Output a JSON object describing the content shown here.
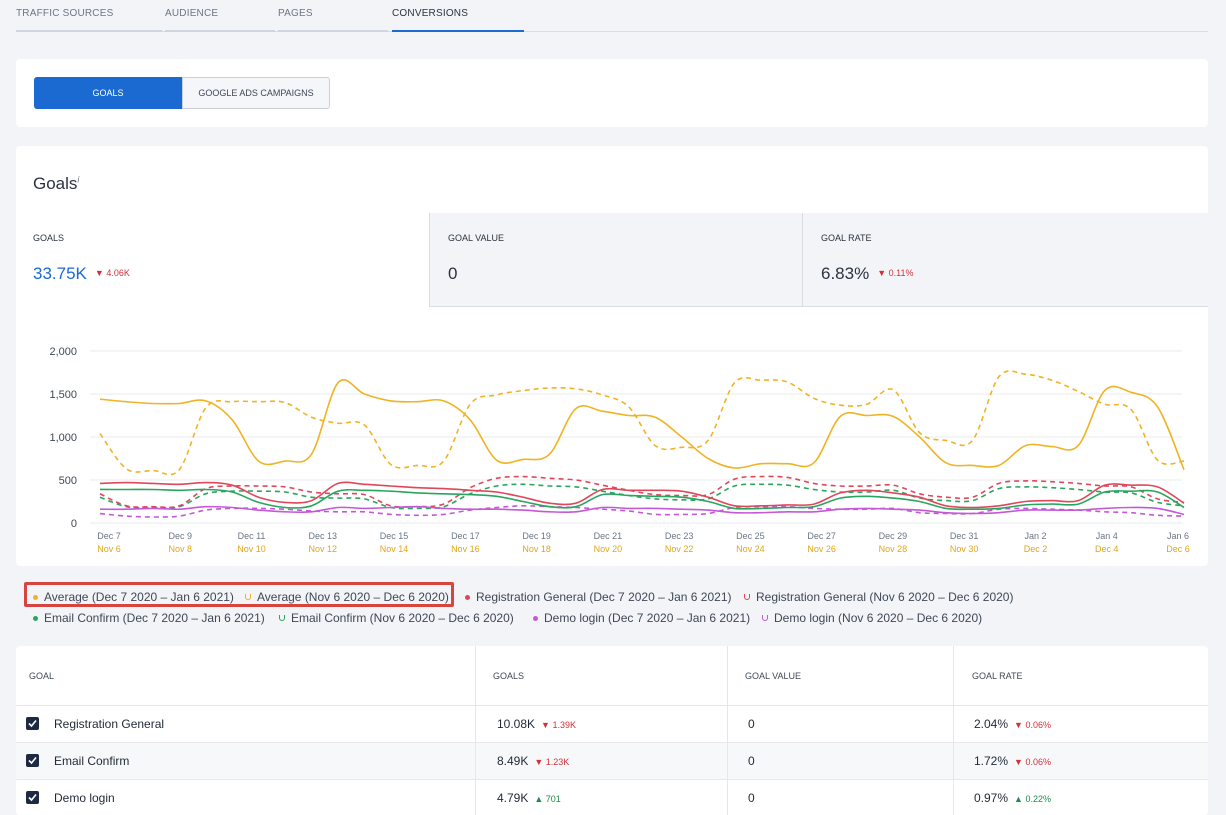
{
  "tabs": [
    {
      "label": "TRAFFIC SOURCES"
    },
    {
      "label": "AUDIENCE"
    },
    {
      "label": "PAGES"
    },
    {
      "label": "CONVERSIONS"
    }
  ],
  "active_tab": "CONVERSIONS",
  "segments": {
    "goals": "GOALS",
    "ads": "GOOGLE ADS CAMPAIGNS"
  },
  "goals_section": {
    "title": "Goals",
    "info": "i",
    "kpis": [
      {
        "label": "GOALS",
        "value": "33.75K",
        "delta": "4.06K"
      },
      {
        "label": "GOAL VALUE",
        "value": "0",
        "delta": ""
      },
      {
        "label": "GOAL RATE",
        "value": "6.83%",
        "delta": "0.11%"
      }
    ]
  },
  "chart_data": {
    "type": "line",
    "y_ticks": [
      "2,000",
      "1,500",
      "1,000",
      "500",
      "0"
    ],
    "ylim": [
      0,
      2000
    ],
    "x_labels_primary": [
      "Dec 7",
      "Dec 9",
      "Dec 11",
      "Dec 13",
      "Dec 15",
      "Dec 17",
      "Dec 19",
      "Dec 21",
      "Dec 23",
      "Dec 25",
      "Dec 27",
      "Dec 29",
      "Dec 31",
      "Jan 2",
      "Jan 4",
      "Jan 6"
    ],
    "x_labels_compare": [
      "Nov 6",
      "Nov 8",
      "Nov 10",
      "Nov 12",
      "Nov 14",
      "Nov 16",
      "Nov 18",
      "Nov 20",
      "Nov 22",
      "Nov 24",
      "Nov 26",
      "Nov 28",
      "Nov 30",
      "Dec 2",
      "Dec 4",
      "Dec 6"
    ],
    "series": [
      {
        "name": "Average (Dec 7 2020 – Jan 6 2021)",
        "color": "#f0b323",
        "dashed": false,
        "values": [
          1440,
          1410,
          1390,
          1390,
          1420,
          1200,
          720,
          720,
          800,
          1630,
          1500,
          1420,
          1410,
          1420,
          1200,
          730,
          740,
          800,
          1330,
          1300,
          1250,
          1230,
          1000,
          750,
          640,
          690,
          690,
          700,
          1240,
          1250,
          1240,
          1000,
          700,
          670,
          670,
          900,
          890,
          900,
          1540,
          1520,
          1350,
          620
        ]
      },
      {
        "name": "Average (Nov 6 2020 – Dec 6 2020)",
        "color": "#f0b323",
        "dashed": true,
        "values": [
          1040,
          630,
          610,
          620,
          1340,
          1410,
          1410,
          1400,
          1230,
          1160,
          1140,
          680,
          670,
          720,
          1380,
          1490,
          1540,
          1570,
          1560,
          1490,
          1350,
          900,
          880,
          960,
          1630,
          1660,
          1640,
          1450,
          1370,
          1380,
          1550,
          1050,
          960,
          960,
          1700,
          1730,
          1660,
          1530,
          1380,
          1320,
          730,
          720
        ]
      },
      {
        "name": "Registration General (Dec 7 2020 – Jan 6 2021)",
        "color": "#e0475a",
        "dashed": false,
        "values": [
          460,
          470,
          460,
          450,
          470,
          440,
          300,
          240,
          260,
          460,
          450,
          430,
          410,
          400,
          380,
          360,
          300,
          230,
          230,
          390,
          380,
          380,
          370,
          300,
          200,
          200,
          210,
          220,
          350,
          380,
          350,
          300,
          200,
          180,
          200,
          250,
          260,
          260,
          440,
          440,
          420,
          230
        ]
      },
      {
        "name": "Registration General (Nov 6 2020 – Dec 6 2020)",
        "color": "#e0475a",
        "dashed": true,
        "values": [
          340,
          200,
          190,
          200,
          400,
          430,
          430,
          420,
          360,
          340,
          330,
          200,
          190,
          220,
          410,
          520,
          540,
          520,
          500,
          440,
          380,
          330,
          320,
          330,
          510,
          540,
          530,
          460,
          430,
          430,
          440,
          340,
          300,
          300,
          460,
          490,
          480,
          460,
          430,
          420,
          280,
          240
        ]
      },
      {
        "name": "Email Confirm (Dec 7 2020 – Jan 6 2021)",
        "color": "#2aa55f",
        "dashed": false,
        "values": [
          390,
          390,
          390,
          380,
          390,
          360,
          240,
          180,
          200,
          370,
          380,
          370,
          350,
          340,
          330,
          310,
          250,
          190,
          190,
          330,
          320,
          310,
          300,
          250,
          170,
          170,
          180,
          190,
          290,
          310,
          290,
          250,
          170,
          160,
          170,
          210,
          220,
          220,
          360,
          370,
          360,
          180
        ]
      },
      {
        "name": "Email Confirm (Nov 6 2020 – Dec 6 2020)",
        "color": "#2aa55f",
        "dashed": true,
        "values": [
          300,
          190,
          180,
          190,
          340,
          370,
          370,
          360,
          300,
          290,
          280,
          180,
          170,
          190,
          340,
          430,
          450,
          430,
          420,
          370,
          320,
          280,
          270,
          280,
          430,
          450,
          440,
          390,
          360,
          360,
          380,
          290,
          260,
          260,
          400,
          420,
          410,
          390,
          360,
          350,
          240,
          200
        ]
      },
      {
        "name": "Demo login (Dec 7 2020 – Jan 6 2021)",
        "color": "#c458d6",
        "dashed": false,
        "values": [
          160,
          160,
          170,
          160,
          190,
          180,
          150,
          130,
          130,
          180,
          170,
          180,
          190,
          170,
          160,
          160,
          150,
          130,
          130,
          180,
          170,
          170,
          160,
          150,
          120,
          120,
          130,
          130,
          160,
          170,
          160,
          150,
          120,
          110,
          120,
          150,
          150,
          150,
          170,
          180,
          170,
          100
        ]
      },
      {
        "name": "Demo login (Nov 6 2020 – Dec 6 2020)",
        "color": "#c458d6",
        "dashed": true,
        "values": [
          110,
          80,
          70,
          80,
          150,
          170,
          170,
          160,
          140,
          130,
          130,
          100,
          90,
          100,
          150,
          180,
          200,
          190,
          180,
          160,
          140,
          100,
          100,
          110,
          180,
          190,
          190,
          170,
          160,
          160,
          170,
          120,
          110,
          110,
          160,
          170,
          160,
          150,
          130,
          120,
          90,
          80
        ]
      }
    ]
  },
  "legend": [
    {
      "label": "Average (Dec 7 2020 – Jan 6 2021)",
      "color": "#f0b323",
      "hollow": false
    },
    {
      "label": "Average (Nov 6 2020 – Dec 6 2020)",
      "color": "#f0b323",
      "hollow": true
    },
    {
      "label": "Registration General (Dec 7 2020 – Jan 6 2021)",
      "color": "#e0475a",
      "hollow": false
    },
    {
      "label": "Registration General (Nov 6 2020 – Dec 6 2020)",
      "color": "#e0475a",
      "hollow": true
    },
    {
      "label": "Email Confirm (Dec 7 2020 – Jan 6 2021)",
      "color": "#2aa55f",
      "hollow": false
    },
    {
      "label": "Email Confirm (Nov 6 2020 – Dec 6 2020)",
      "color": "#2aa55f",
      "hollow": true
    },
    {
      "label": "Demo login (Dec 7 2020 – Jan 6 2021)",
      "color": "#c458d6",
      "hollow": false
    },
    {
      "label": "Demo login (Nov 6 2020 – Dec 6 2020)",
      "color": "#c458d6",
      "hollow": true
    }
  ],
  "table": {
    "headers": [
      "GOAL",
      "GOALS",
      "GOAL VALUE",
      "GOAL RATE"
    ],
    "rows": [
      {
        "checked": true,
        "goal": "Registration General",
        "goals": "10.08K",
        "goals_delta": "1.39K",
        "goals_dir": "down",
        "value": "0",
        "rate": "2.04%",
        "rate_delta": "0.06%",
        "rate_dir": "down"
      },
      {
        "checked": true,
        "goal": "Email Confirm",
        "goals": "8.49K",
        "goals_delta": "1.23K",
        "goals_dir": "down",
        "value": "0",
        "rate": "1.72%",
        "rate_delta": "0.06%",
        "rate_dir": "down"
      },
      {
        "checked": true,
        "goal": "Demo login",
        "goals": "4.79K",
        "goals_delta": "701",
        "goals_dir": "up",
        "value": "0",
        "rate": "0.97%",
        "rate_delta": "0.22%",
        "rate_dir": "up"
      }
    ]
  }
}
